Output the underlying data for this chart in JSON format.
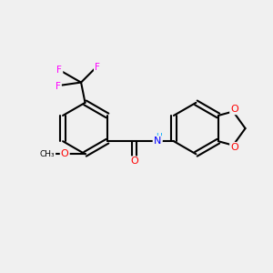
{
  "background_color": "#f0f0f0",
  "bond_color": "#000000",
  "bond_width": 1.5,
  "atom_colors": {
    "F": "#ff00ff",
    "O": "#ff0000",
    "N": "#0000ff",
    "H": "#00aaff",
    "C": "#000000"
  },
  "figsize": [
    3.0,
    3.0
  ],
  "dpi": 100
}
